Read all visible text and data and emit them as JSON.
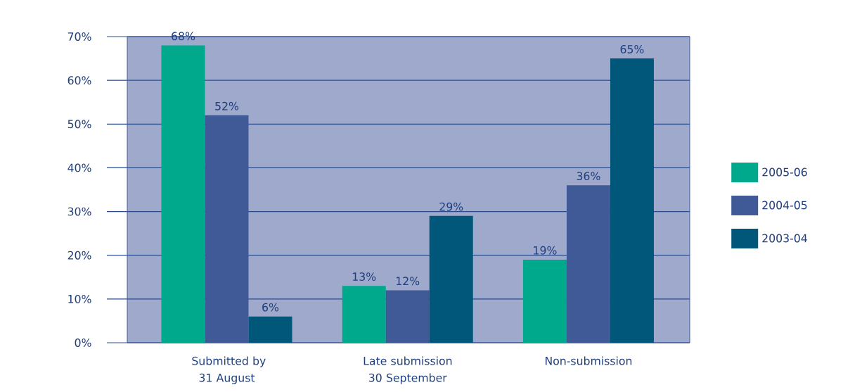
{
  "chart_data": {
    "type": "bar",
    "categories": [
      "Submitted by 31 August",
      "Late submission 30 September",
      "Non-submission"
    ],
    "series": [
      {
        "name": "2005-06",
        "color": "#00a88c",
        "values": [
          68,
          13,
          19
        ],
        "value_labels": [
          "68%",
          "13%",
          "19%"
        ]
      },
      {
        "name": "2004-05",
        "color": "#3f5a96",
        "values": [
          52,
          12,
          36
        ],
        "value_labels": [
          "52%",
          "12%",
          "36%"
        ]
      },
      {
        "name": "2003-04",
        "color": "#00577a",
        "values": [
          6,
          29,
          65
        ],
        "value_labels": [
          "6%",
          "29%",
          "65%"
        ]
      }
    ],
    "ylim": [
      0,
      70
    ],
    "yticks": [
      {
        "value": 0,
        "label": "0%"
      },
      {
        "value": 10,
        "label": "10%"
      },
      {
        "value": 20,
        "label": "20%"
      },
      {
        "value": 30,
        "label": "30%"
      },
      {
        "value": 40,
        "label": "40%"
      },
      {
        "value": 50,
        "label": "50%"
      },
      {
        "value": 60,
        "label": "60%"
      },
      {
        "value": 70,
        "label": "70%"
      }
    ],
    "grid": "y",
    "legend": "right"
  }
}
